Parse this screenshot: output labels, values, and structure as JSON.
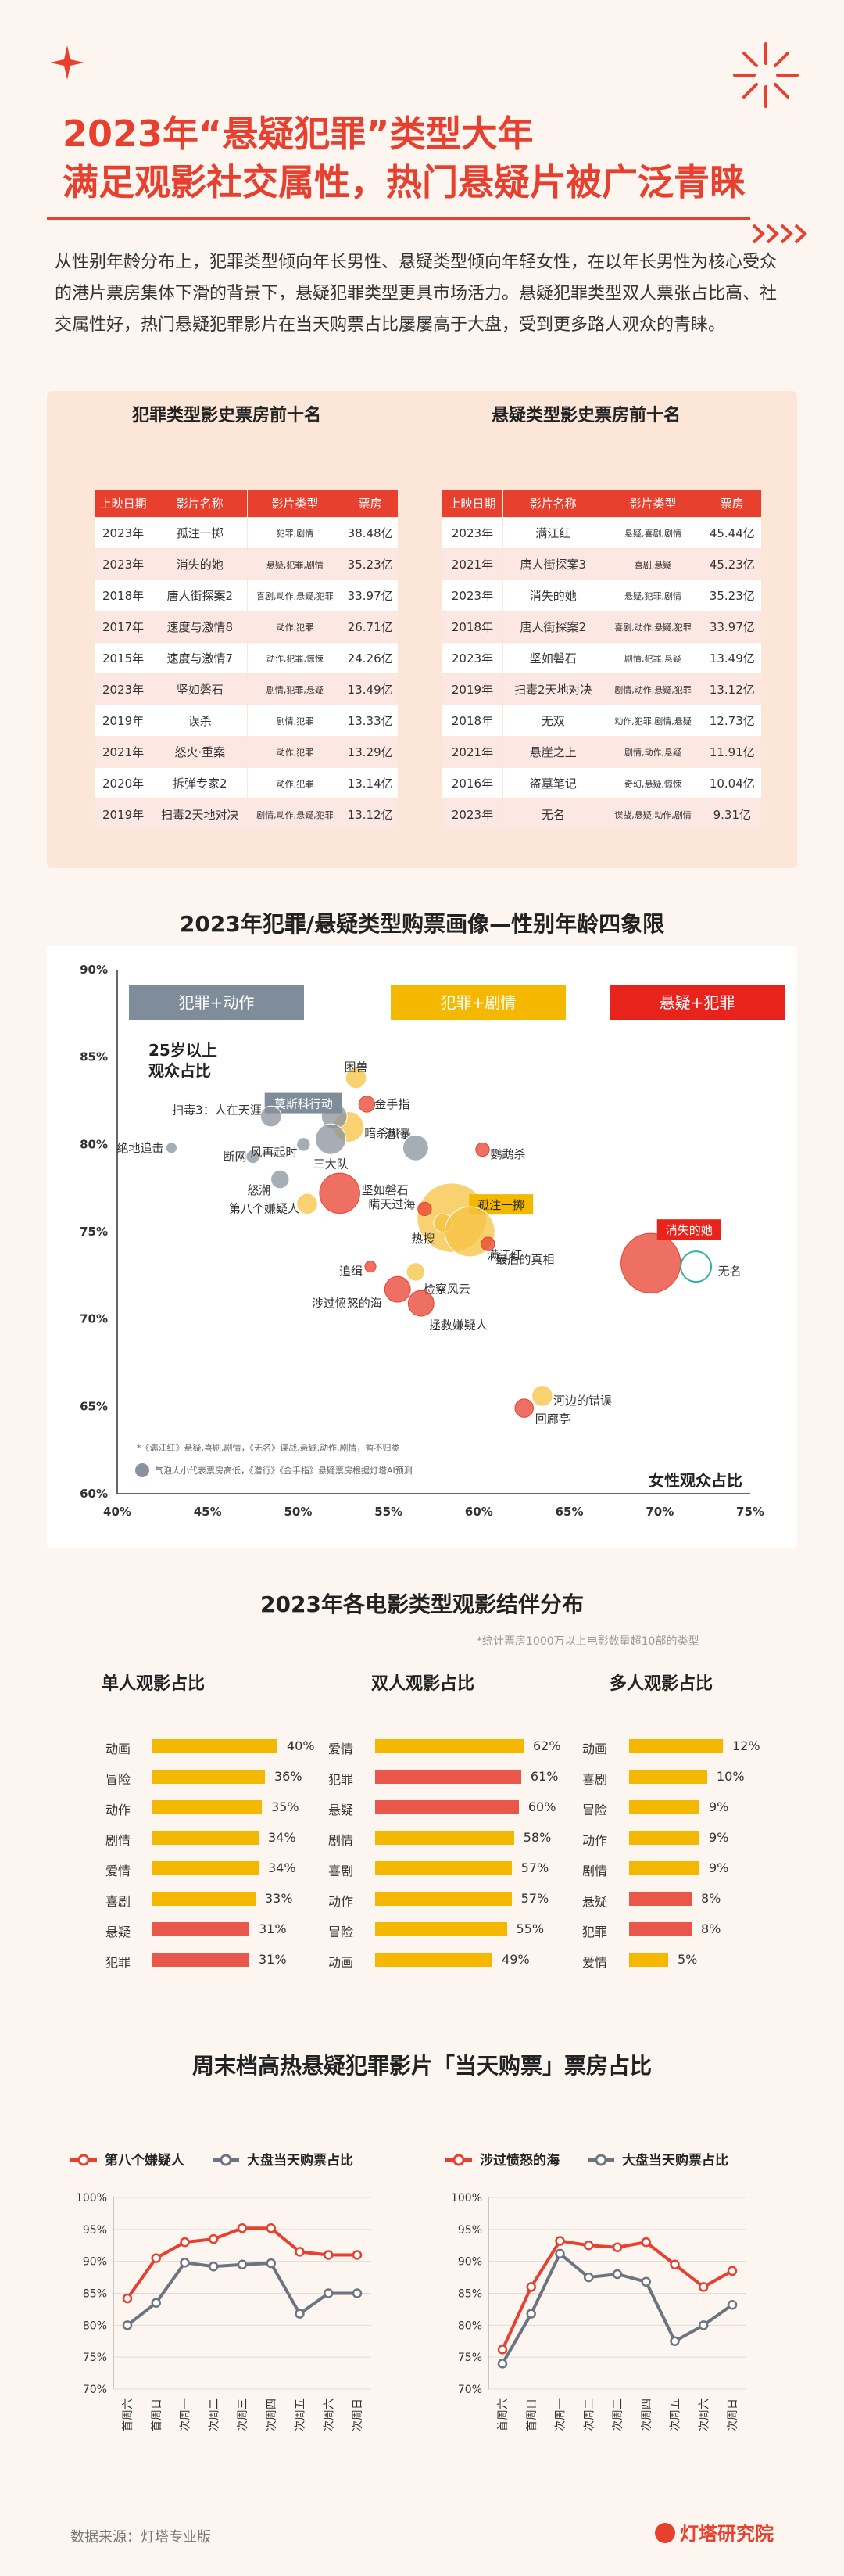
{
  "header": {
    "title_line1": "2023年“悬疑犯罪”类型大年",
    "title_line2": "满足观影社交属性，热门悬疑片被广泛青睐",
    "intro": "从性别年龄分布上，犯罪类型倾向年长男性、悬疑类型倾向年轻女性，在以年长男性为核心受众的港片票房集体下滑的背景下，悬疑犯罪类型更具市场活力。悬疑犯罪类型双人票张占比高、社交属性好，热门悬疑犯罪影片在当天购票占比屡屡高于大盘，受到更多路人观众的青睐。"
  },
  "tables": {
    "crime": {
      "title": "犯罪类型影史票房前十名",
      "headers": [
        "上映日期",
        "影片名称",
        "影片类型",
        "票房"
      ],
      "rows": [
        [
          "2023年",
          "孤注一掷",
          "犯罪,剧情",
          "38.48亿"
        ],
        [
          "2023年",
          "消失的她",
          "悬疑,犯罪,剧情",
          "35.23亿"
        ],
        [
          "2018年",
          "唐人街探案2",
          "喜剧,动作,悬疑,犯罪",
          "33.97亿"
        ],
        [
          "2017年",
          "速度与激情8",
          "动作,犯罪",
          "26.71亿"
        ],
        [
          "2015年",
          "速度与激情7",
          "动作,犯罪,惊悚",
          "24.26亿"
        ],
        [
          "2023年",
          "坚如磐石",
          "剧情,犯罪,悬疑",
          "13.49亿"
        ],
        [
          "2019年",
          "误杀",
          "剧情,犯罪",
          "13.33亿"
        ],
        [
          "2021年",
          "怒火·重案",
          "动作,犯罪",
          "13.29亿"
        ],
        [
          "2020年",
          "拆弹专家2",
          "动作,犯罪",
          "13.14亿"
        ],
        [
          "2019年",
          "扫毒2天地对决",
          "剧情,动作,悬疑,犯罪",
          "13.12亿"
        ]
      ]
    },
    "suspense": {
      "title": "悬疑类型影史票房前十名",
      "headers": [
        "上映日期",
        "影片名称",
        "影片类型",
        "票房"
      ],
      "rows": [
        [
          "2023年",
          "满江红",
          "悬疑,喜剧,剧情",
          "45.44亿"
        ],
        [
          "2021年",
          "唐人街探案3",
          "喜剧,悬疑",
          "45.23亿"
        ],
        [
          "2023年",
          "消失的她",
          "悬疑,犯罪,剧情",
          "35.23亿"
        ],
        [
          "2018年",
          "唐人街探案2",
          "喜剧,动作,悬疑,犯罪",
          "33.97亿"
        ],
        [
          "2023年",
          "坚如磐石",
          "剧情,犯罪,悬疑",
          "13.49亿"
        ],
        [
          "2019年",
          "扫毒2天地对决",
          "剧情,动作,悬疑,犯罪",
          "13.12亿"
        ],
        [
          "2018年",
          "无双",
          "动作,犯罪,剧情,悬疑",
          "12.73亿"
        ],
        [
          "2021年",
          "悬崖之上",
          "剧情,动作,悬疑",
          "11.91亿"
        ],
        [
          "2016年",
          "盗墓笔记",
          "奇幻,悬疑,惊悚",
          "10.04亿"
        ],
        [
          "2023年",
          "无名",
          "谍战,悬疑,动作,剧情",
          "9.31亿"
        ]
      ]
    }
  },
  "quadrant": {
    "title": "2023年犯罪/悬疑类型购票画像—性别年龄四象限",
    "y_axis_label_line1": "25岁以上",
    "y_axis_label_line2": "观众占比",
    "x_axis_label": "女性观众占比",
    "legend": [
      {
        "label": "犯罪+动作",
        "color": "#7f8c99"
      },
      {
        "label": "犯罪+剧情",
        "color": "#f5b800"
      },
      {
        "label": "悬疑+犯罪",
        "color": "#e8231b"
      }
    ],
    "note1": "*《满江红》悬疑,喜剧,剧情，《无名》谍战,悬疑,动作,剧情，暂不归类",
    "note2": "气泡大小代表票房高低，《潜行》《金手指》悬疑票房根据灯塔AI预测"
  },
  "chart_data": [
    {
      "type": "scatter",
      "title": "2023年犯罪/悬疑类型购票画像—性别年龄四象限",
      "xlabel": "女性观众占比",
      "ylabel": "25岁以上观众占比",
      "xlim": [
        40,
        75
      ],
      "ylim": [
        60,
        90
      ],
      "xticks": [
        "40%",
        "45%",
        "50%",
        "55%",
        "60%",
        "65%",
        "70%",
        "75%"
      ],
      "yticks": [
        "60%",
        "65%",
        "70%",
        "75%",
        "80%",
        "85%",
        "90%"
      ],
      "points": [
        {
          "name": "困兽",
          "x": 53.2,
          "y": 83.8,
          "size": 6,
          "color": "#f5c242"
        },
        {
          "name": "金手指",
          "x": 53.8,
          "y": 82.3,
          "size": 4,
          "color": "#e8402f"
        },
        {
          "name": "暗杀风暴",
          "x": 52.8,
          "y": 81.0,
          "size": 10,
          "color": "#f5c242"
        },
        {
          "name": "莫斯科行动",
          "x": 52.0,
          "y": 81.6,
          "size": 8,
          "color": "#8a929c"
        },
        {
          "name": "扫毒3：人在天涯",
          "x": 48.5,
          "y": 81.6,
          "size": 6,
          "color": "#8a929c"
        },
        {
          "name": "三大队",
          "x": 51.8,
          "y": 80.3,
          "size": 10,
          "color": "#8a929c"
        },
        {
          "name": "绝地追击",
          "x": 43.0,
          "y": 79.8,
          "size": 2,
          "color": "#8a929c"
        },
        {
          "name": "断网",
          "x": 47.5,
          "y": 79.3,
          "size": 3,
          "color": "#8a929c"
        },
        {
          "name": "风再起时",
          "x": 50.3,
          "y": 80.0,
          "size": 3,
          "color": "#8a929c"
        },
        {
          "name": "潜行",
          "x": 56.5,
          "y": 79.8,
          "size": 8,
          "color": "#8a929c"
        },
        {
          "name": "鹦鹉杀",
          "x": 60.2,
          "y": 79.7,
          "size": 3,
          "color": "#e8402f"
        },
        {
          "name": "怒潮",
          "x": 49.0,
          "y": 78.0,
          "size": 5,
          "color": "#8a929c"
        },
        {
          "name": "坚如磐石",
          "x": 52.3,
          "y": 77.2,
          "size": 14,
          "color": "#e8402f"
        },
        {
          "name": "第八个嫌疑人",
          "x": 50.5,
          "y": 76.6,
          "size": 6,
          "color": "#f5c242"
        },
        {
          "name": "孤注一掷",
          "x": 58.5,
          "y": 75.8,
          "size": 26,
          "color": "#f5c242"
        },
        {
          "name": "瞒天过海",
          "x": 57.0,
          "y": 76.3,
          "size": 3,
          "color": "#e8402f"
        },
        {
          "name": "热搜",
          "x": 58.0,
          "y": 75.5,
          "size": 5,
          "color": "#f5c242"
        },
        {
          "name": "满江红",
          "x": 59.5,
          "y": 75.0,
          "size": 18,
          "color": "#f5c242"
        },
        {
          "name": "最后的真相",
          "x": 60.5,
          "y": 74.3,
          "size": 3,
          "color": "#e8402f"
        },
        {
          "name": "消失的她",
          "x": 69.5,
          "y": 73.2,
          "size": 22,
          "color": "#e8402f"
        },
        {
          "name": "无名",
          "x": 72.0,
          "y": 73.0,
          "size": 10,
          "color": "#ffffff"
        },
        {
          "name": "追缉",
          "x": 54.0,
          "y": 73.0,
          "size": 2,
          "color": "#e8402f"
        },
        {
          "name": "检察风云",
          "x": 56.5,
          "y": 72.7,
          "size": 5,
          "color": "#f5c242"
        },
        {
          "name": "涉过愤怒的海",
          "x": 55.5,
          "y": 71.7,
          "size": 8,
          "color": "#e8402f"
        },
        {
          "name": "拯救嫌疑人",
          "x": 56.8,
          "y": 70.9,
          "size": 8,
          "color": "#e8402f"
        },
        {
          "name": "河边的错误",
          "x": 63.5,
          "y": 65.6,
          "size": 6,
          "color": "#f5c242"
        },
        {
          "name": "回廊亭",
          "x": 62.5,
          "y": 64.9,
          "size": 5,
          "color": "#e8402f"
        }
      ]
    },
    {
      "type": "bar",
      "title": "单人观影占比",
      "categories": [
        "动画",
        "冒险",
        "动作",
        "剧情",
        "爱情",
        "喜剧",
        "悬疑",
        "犯罪"
      ],
      "values": [
        40,
        36,
        35,
        34,
        34,
        33,
        31,
        31
      ],
      "highlight": [
        false,
        false,
        false,
        false,
        false,
        false,
        true,
        true
      ]
    },
    {
      "type": "bar",
      "title": "双人观影占比",
      "categories": [
        "爱情",
        "犯罪",
        "悬疑",
        "剧情",
        "喜剧",
        "动作",
        "冒险",
        "动画"
      ],
      "values": [
        62,
        61,
        60,
        58,
        57,
        57,
        55,
        49
      ],
      "highlight": [
        false,
        true,
        true,
        false,
        false,
        false,
        false,
        false
      ]
    },
    {
      "type": "bar",
      "title": "多人观影占比",
      "categories": [
        "动画",
        "喜剧",
        "冒险",
        "动作",
        "剧情",
        "悬疑",
        "犯罪",
        "爱情"
      ],
      "values": [
        12,
        10,
        9,
        9,
        9,
        8,
        8,
        5
      ],
      "highlight": [
        false,
        false,
        false,
        false,
        false,
        true,
        true,
        false
      ]
    },
    {
      "type": "line",
      "categories": [
        "首周六",
        "首周日",
        "次周一",
        "次周二",
        "次周三",
        "次周四",
        "次周五",
        "次周六",
        "次周日"
      ],
      "ylim": [
        70,
        100
      ],
      "series": [
        {
          "name": "第八个嫌疑人",
          "values": [
            84.2,
            90.5,
            93.0,
            93.5,
            95.2,
            95.2,
            91.5,
            91.0,
            91.0
          ],
          "color": "#e8402f"
        },
        {
          "name": "大盘当天购票占比",
          "values": [
            80.0,
            83.5,
            89.8,
            89.2,
            89.5,
            89.7,
            81.8,
            85.0,
            85.0
          ],
          "color": "#6b7480"
        }
      ]
    },
    {
      "type": "line",
      "categories": [
        "首周六",
        "首周日",
        "次周一",
        "次周二",
        "次周三",
        "次周四",
        "次周五",
        "次周六",
        "次周日"
      ],
      "ylim": [
        70,
        100
      ],
      "series": [
        {
          "name": "涉过愤怒的海",
          "values": [
            76.2,
            86.0,
            93.2,
            92.5,
            92.2,
            93.0,
            89.5,
            86.0,
            88.5
          ],
          "color": "#e8402f"
        },
        {
          "name": "大盘当天购票占比",
          "values": [
            74.0,
            81.8,
            91.2,
            87.5,
            88.0,
            86.8,
            77.5,
            80.0,
            83.2
          ],
          "color": "#6b7480"
        }
      ]
    }
  ],
  "companion": {
    "title": "2023年各电影类型观影结伴分布",
    "note": "*统计票房1000万以上电影数量超10部的类型"
  },
  "weekend": {
    "title": "周末档高热悬疑犯罪影片「当天购票」票房占比",
    "yticks": [
      "70%",
      "75%",
      "80%",
      "85%",
      "90%",
      "95%",
      "100%"
    ]
  },
  "footer": {
    "source": "数据来源：灯塔专业版",
    "brand": "灯塔研究院"
  }
}
